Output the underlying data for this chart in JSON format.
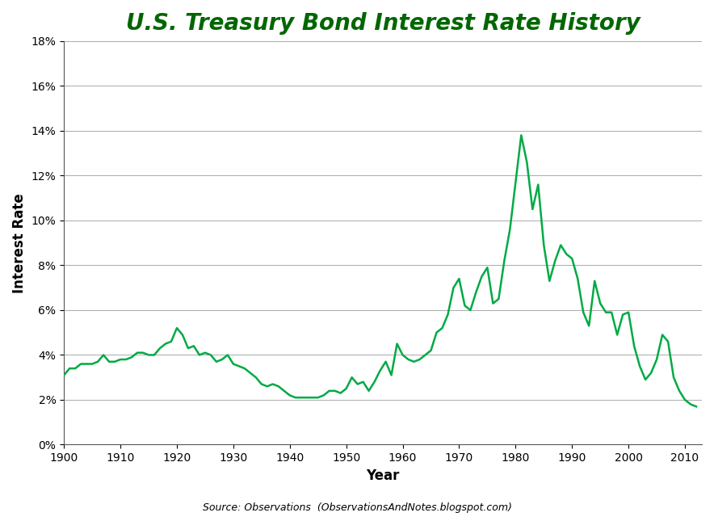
{
  "title": "U.S. Treasury Bond Interest Rate History",
  "xlabel": "Year",
  "ylabel": "Interest Rate",
  "source_text": "Source: Observations  (ObservationsAndNotes.blogspot.com)",
  "line_color": "#00AA44",
  "line_width": 1.8,
  "background_color": "#FFFFFF",
  "title_color": "#006600",
  "title_fontsize": 20,
  "xlim": [
    1900,
    2013
  ],
  "ylim": [
    0,
    0.18
  ],
  "yticks": [
    0,
    0.02,
    0.04,
    0.06,
    0.08,
    0.1,
    0.12,
    0.14,
    0.16,
    0.18
  ],
  "ytick_labels": [
    "0%",
    "2%",
    "4%",
    "6%",
    "8%",
    "10%",
    "12%",
    "14%",
    "16%",
    "18%"
  ],
  "xticks": [
    1900,
    1910,
    1920,
    1930,
    1940,
    1950,
    1960,
    1970,
    1980,
    1990,
    2000,
    2010
  ],
  "data": {
    "years": [
      1900,
      1901,
      1902,
      1903,
      1904,
      1905,
      1906,
      1907,
      1908,
      1909,
      1910,
      1911,
      1912,
      1913,
      1914,
      1915,
      1916,
      1917,
      1918,
      1919,
      1920,
      1921,
      1922,
      1923,
      1924,
      1925,
      1926,
      1927,
      1928,
      1929,
      1930,
      1931,
      1932,
      1933,
      1934,
      1935,
      1936,
      1937,
      1938,
      1939,
      1940,
      1941,
      1942,
      1943,
      1944,
      1945,
      1946,
      1947,
      1948,
      1949,
      1950,
      1951,
      1952,
      1953,
      1954,
      1955,
      1956,
      1957,
      1958,
      1959,
      1960,
      1961,
      1962,
      1963,
      1964,
      1965,
      1966,
      1967,
      1968,
      1969,
      1970,
      1971,
      1972,
      1973,
      1974,
      1975,
      1976,
      1977,
      1978,
      1979,
      1980,
      1981,
      1982,
      1983,
      1984,
      1985,
      1986,
      1987,
      1988,
      1989,
      1990,
      1991,
      1992,
      1993,
      1994,
      1995,
      1996,
      1997,
      1998,
      1999,
      2000,
      2001,
      2002,
      2003,
      2004,
      2005,
      2006,
      2007,
      2008,
      2009,
      2010,
      2011,
      2012
    ],
    "rates": [
      0.031,
      0.034,
      0.034,
      0.036,
      0.036,
      0.036,
      0.037,
      0.04,
      0.037,
      0.037,
      0.038,
      0.038,
      0.039,
      0.041,
      0.041,
      0.04,
      0.04,
      0.043,
      0.045,
      0.046,
      0.052,
      0.049,
      0.043,
      0.044,
      0.04,
      0.041,
      0.04,
      0.037,
      0.038,
      0.04,
      0.036,
      0.035,
      0.034,
      0.032,
      0.03,
      0.027,
      0.026,
      0.027,
      0.026,
      0.024,
      0.022,
      0.021,
      0.021,
      0.021,
      0.021,
      0.021,
      0.022,
      0.024,
      0.024,
      0.023,
      0.025,
      0.03,
      0.027,
      0.028,
      0.024,
      0.028,
      0.033,
      0.037,
      0.031,
      0.045,
      0.04,
      0.038,
      0.037,
      0.038,
      0.04,
      0.042,
      0.05,
      0.052,
      0.058,
      0.07,
      0.074,
      0.062,
      0.06,
      0.068,
      0.075,
      0.079,
      0.063,
      0.065,
      0.082,
      0.096,
      0.117,
      0.138,
      0.126,
      0.105,
      0.116,
      0.089,
      0.073,
      0.082,
      0.089,
      0.085,
      0.083,
      0.074,
      0.059,
      0.053,
      0.073,
      0.063,
      0.059,
      0.059,
      0.049,
      0.058,
      0.059,
      0.044,
      0.035,
      0.029,
      0.032,
      0.038,
      0.049,
      0.046,
      0.03,
      0.024,
      0.02,
      0.018,
      0.017
    ]
  }
}
